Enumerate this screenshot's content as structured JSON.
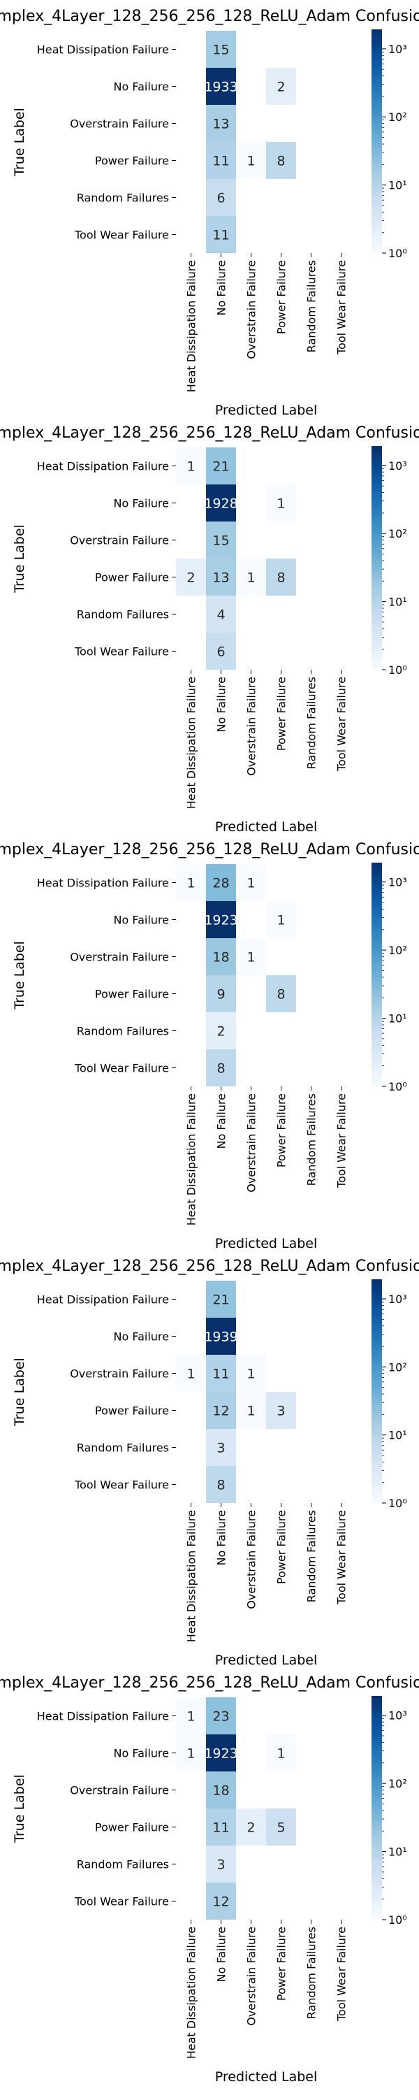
{
  "chart_data": [
    {
      "type": "heatmap",
      "title": "mplex_4Layer_128_256_256_128_ReLU_Adam Confusio",
      "xlabel": "Predicted Label",
      "ylabel": "True Label",
      "rows": [
        "Heat Dissipation Failure",
        "No Failure",
        "Overstrain Failure",
        "Power Failure",
        "Random Failures",
        "Tool Wear Failure"
      ],
      "cols": [
        "Heat Dissipation Failure",
        "No Failure",
        "Overstrain Failure",
        "Power Failure",
        "Random Failures",
        "Tool Wear Failure"
      ],
      "values": [
        [
          0,
          15,
          0,
          0,
          0,
          0
        ],
        [
          0,
          1933,
          0,
          2,
          0,
          0
        ],
        [
          0,
          13,
          0,
          0,
          0,
          0
        ],
        [
          0,
          11,
          1,
          8,
          0,
          0
        ],
        [
          0,
          6,
          0,
          0,
          0,
          0
        ],
        [
          0,
          11,
          0,
          0,
          0,
          0
        ]
      ],
      "colorbar": {
        "scale": "log",
        "ticks": [
          "10⁰",
          "10¹",
          "10²",
          "10³"
        ],
        "colormap": "Blues"
      }
    },
    {
      "type": "heatmap",
      "title": "mplex_4Layer_128_256_256_128_ReLU_Adam Confusio",
      "xlabel": "Predicted Label",
      "ylabel": "True Label",
      "rows": [
        "Heat Dissipation Failure",
        "No Failure",
        "Overstrain Failure",
        "Power Failure",
        "Random Failures",
        "Tool Wear Failure"
      ],
      "cols": [
        "Heat Dissipation Failure",
        "No Failure",
        "Overstrain Failure",
        "Power Failure",
        "Random Failures",
        "Tool Wear Failure"
      ],
      "values": [
        [
          1,
          21,
          0,
          0,
          0,
          0
        ],
        [
          0,
          1928,
          0,
          1,
          0,
          0
        ],
        [
          0,
          15,
          0,
          0,
          0,
          0
        ],
        [
          2,
          13,
          1,
          8,
          0,
          0
        ],
        [
          0,
          4,
          0,
          0,
          0,
          0
        ],
        [
          0,
          6,
          0,
          0,
          0,
          0
        ]
      ],
      "colorbar": {
        "scale": "log",
        "ticks": [
          "10⁰",
          "10¹",
          "10²",
          "10³"
        ],
        "colormap": "Blues"
      }
    },
    {
      "type": "heatmap",
      "title": "mplex_4Layer_128_256_256_128_ReLU_Adam Confusio",
      "xlabel": "Predicted Label",
      "ylabel": "True Label",
      "rows": [
        "Heat Dissipation Failure",
        "No Failure",
        "Overstrain Failure",
        "Power Failure",
        "Random Failures",
        "Tool Wear Failure"
      ],
      "cols": [
        "Heat Dissipation Failure",
        "No Failure",
        "Overstrain Failure",
        "Power Failure",
        "Random Failures",
        "Tool Wear Failure"
      ],
      "values": [
        [
          1,
          28,
          1,
          0,
          0,
          0
        ],
        [
          0,
          1923,
          0,
          1,
          0,
          0
        ],
        [
          0,
          18,
          1,
          0,
          0,
          0
        ],
        [
          0,
          9,
          0,
          8,
          0,
          0
        ],
        [
          0,
          2,
          0,
          0,
          0,
          0
        ],
        [
          0,
          8,
          0,
          0,
          0,
          0
        ]
      ],
      "colorbar": {
        "scale": "log",
        "ticks": [
          "10⁰",
          "10¹",
          "10²",
          "10³"
        ],
        "colormap": "Blues"
      }
    },
    {
      "type": "heatmap",
      "title": "mplex_4Layer_128_256_256_128_ReLU_Adam Confusio",
      "xlabel": "Predicted Label",
      "ylabel": "True Label",
      "rows": [
        "Heat Dissipation Failure",
        "No Failure",
        "Overstrain Failure",
        "Power Failure",
        "Random Failures",
        "Tool Wear Failure"
      ],
      "cols": [
        "Heat Dissipation Failure",
        "No Failure",
        "Overstrain Failure",
        "Power Failure",
        "Random Failures",
        "Tool Wear Failure"
      ],
      "values": [
        [
          0,
          21,
          0,
          0,
          0,
          0
        ],
        [
          0,
          1939,
          0,
          0,
          0,
          0
        ],
        [
          1,
          11,
          1,
          0,
          0,
          0
        ],
        [
          0,
          12,
          1,
          3,
          0,
          0
        ],
        [
          0,
          3,
          0,
          0,
          0,
          0
        ],
        [
          0,
          8,
          0,
          0,
          0,
          0
        ]
      ],
      "colorbar": {
        "scale": "log",
        "ticks": [
          "10⁰",
          "10¹",
          "10²",
          "10³"
        ],
        "colormap": "Blues"
      }
    },
    {
      "type": "heatmap",
      "title": "mplex_4Layer_128_256_256_128_ReLU_Adam Confusio",
      "xlabel": "Predicted Label",
      "ylabel": "True Label",
      "rows": [
        "Heat Dissipation Failure",
        "No Failure",
        "Overstrain Failure",
        "Power Failure",
        "Random Failures",
        "Tool Wear Failure"
      ],
      "cols": [
        "Heat Dissipation Failure",
        "No Failure",
        "Overstrain Failure",
        "Power Failure",
        "Random Failures",
        "Tool Wear Failure"
      ],
      "values": [
        [
          1,
          23,
          0,
          0,
          0,
          0
        ],
        [
          1,
          1923,
          0,
          1,
          0,
          0
        ],
        [
          0,
          18,
          0,
          0,
          0,
          0
        ],
        [
          0,
          11,
          2,
          5,
          0,
          0
        ],
        [
          0,
          3,
          0,
          0,
          0,
          0
        ],
        [
          0,
          12,
          0,
          0,
          0,
          0
        ]
      ],
      "colorbar": {
        "scale": "log",
        "ticks": [
          "10⁰",
          "10¹",
          "10²",
          "10³"
        ],
        "colormap": "Blues"
      }
    }
  ]
}
